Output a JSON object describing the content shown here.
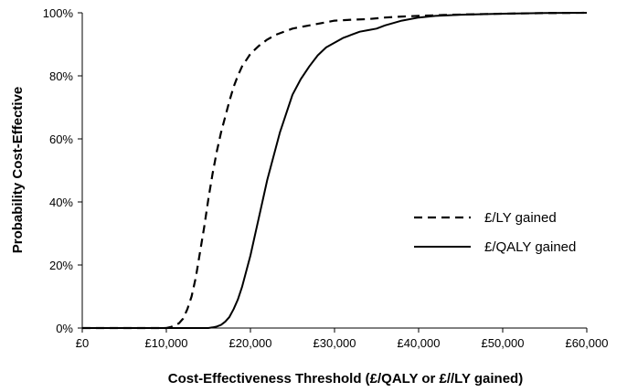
{
  "chart_data": {
    "type": "line",
    "title": "",
    "xlabel": "Cost-Effectiveness Threshold (£/QALY or £//LY gained)",
    "ylabel": "Probability Cost-Effective",
    "xlim": [
      0,
      60000
    ],
    "ylim": [
      0,
      1
    ],
    "x_ticks": [
      0,
      10000,
      20000,
      30000,
      40000,
      50000,
      60000
    ],
    "x_tick_labels": [
      "£0",
      "£10,000",
      "£20,000",
      "£30,000",
      "£40,000",
      "£50,000",
      "£60,000"
    ],
    "y_ticks": [
      0,
      0.2,
      0.4,
      0.6,
      0.8,
      1.0
    ],
    "y_tick_labels": [
      "0%",
      "20%",
      "40%",
      "60%",
      "80%",
      "100%"
    ],
    "grid": false,
    "legend_position": "center-right",
    "series": [
      {
        "name": "£/LY gained",
        "style": "dashed",
        "color": "#000000",
        "x": [
          0,
          10000,
          10500,
          11000,
          11500,
          12000,
          12500,
          13000,
          13500,
          14000,
          14500,
          15000,
          15500,
          16000,
          16500,
          17000,
          17500,
          18000,
          18500,
          19000,
          19500,
          20000,
          21000,
          22000,
          23000,
          24000,
          25000,
          26000,
          27000,
          28000,
          29000,
          30000,
          32000,
          34000,
          36000,
          38000,
          40000,
          43000,
          46000,
          50000,
          55000,
          60000
        ],
        "y": [
          0,
          0,
          0.003,
          0.008,
          0.015,
          0.03,
          0.06,
          0.1,
          0.16,
          0.24,
          0.32,
          0.41,
          0.49,
          0.56,
          0.62,
          0.67,
          0.72,
          0.765,
          0.8,
          0.83,
          0.85,
          0.87,
          0.895,
          0.915,
          0.93,
          0.94,
          0.95,
          0.955,
          0.96,
          0.965,
          0.97,
          0.975,
          0.978,
          0.98,
          0.985,
          0.988,
          0.99,
          0.993,
          0.995,
          0.997,
          0.999,
          1.0
        ]
      },
      {
        "name": "£/QALY gained",
        "style": "solid",
        "color": "#000000",
        "x": [
          0,
          15000,
          15500,
          16000,
          16500,
          17000,
          17500,
          18000,
          18500,
          19000,
          19500,
          20000,
          20500,
          21000,
          21500,
          22000,
          22500,
          23000,
          23500,
          24000,
          24500,
          25000,
          26000,
          27000,
          28000,
          29000,
          30000,
          31000,
          32000,
          33000,
          34000,
          35000,
          36000,
          38000,
          40000,
          42000,
          45000,
          50000,
          55000,
          60000
        ],
        "y": [
          0,
          0,
          0.002,
          0.005,
          0.01,
          0.02,
          0.035,
          0.06,
          0.09,
          0.13,
          0.18,
          0.23,
          0.29,
          0.35,
          0.41,
          0.47,
          0.52,
          0.57,
          0.62,
          0.66,
          0.7,
          0.74,
          0.79,
          0.83,
          0.865,
          0.89,
          0.905,
          0.92,
          0.93,
          0.94,
          0.945,
          0.95,
          0.96,
          0.975,
          0.985,
          0.99,
          0.994,
          0.997,
          0.999,
          1.0
        ]
      }
    ]
  }
}
